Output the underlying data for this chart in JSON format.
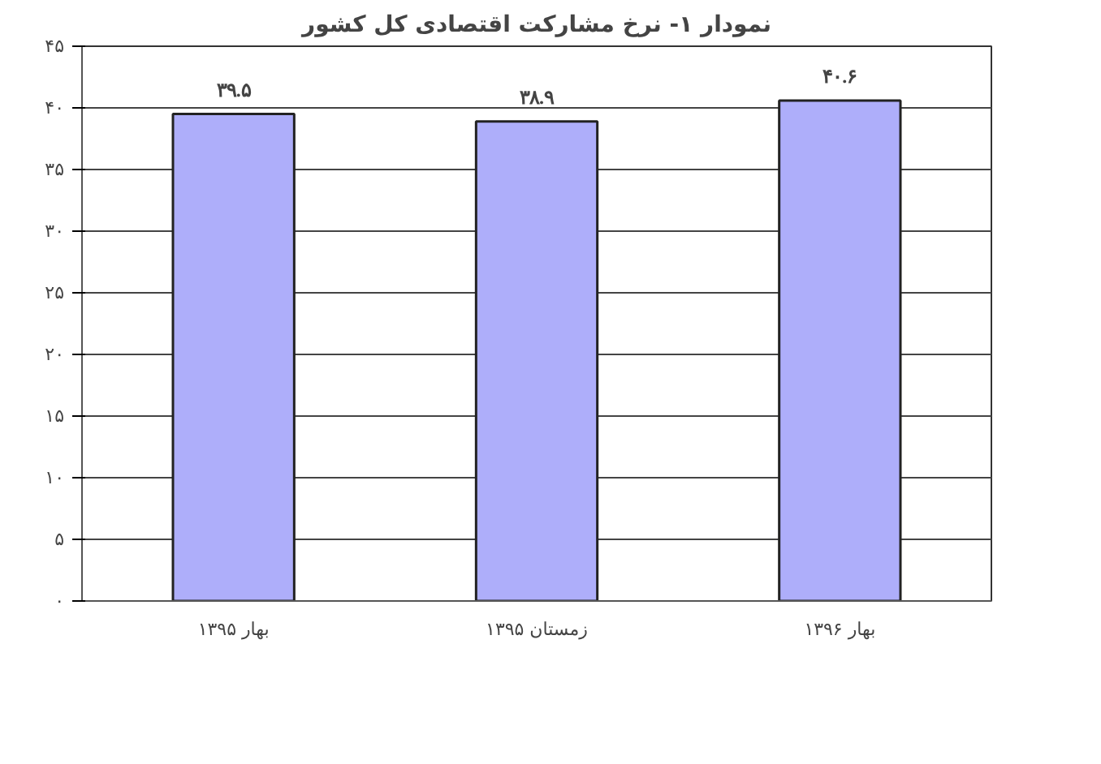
{
  "chart_data": {
    "type": "bar",
    "title": "نمودار ۱- نرخ مشارکت اقتصادی کل کشور",
    "categories": [
      "بهار ۱۳۹۵",
      "زمستان ۱۳۹۵",
      "بهار ۱۳۹۶"
    ],
    "values": [
      39.5,
      38.9,
      40.6
    ],
    "color": "#aeaefa",
    "value_labels": [
      "۳۹.۵",
      "۳۸.۹",
      "۴۰.۶"
    ],
    "ylim": [
      0,
      45
    ],
    "yticks": [
      {
        "value": 0,
        "label": "۰"
      },
      {
        "value": 5,
        "label": "۵"
      },
      {
        "value": 10,
        "label": "۱۰"
      },
      {
        "value": 15,
        "label": "۱۵"
      },
      {
        "value": 20,
        "label": "۲۰"
      },
      {
        "value": 25,
        "label": "۲۵"
      },
      {
        "value": 30,
        "label": "۳۰"
      },
      {
        "value": 35,
        "label": "۳۵"
      },
      {
        "value": 40,
        "label": "۴۰"
      },
      {
        "value": 45,
        "label": "۴۵"
      }
    ],
    "grid": "y"
  }
}
